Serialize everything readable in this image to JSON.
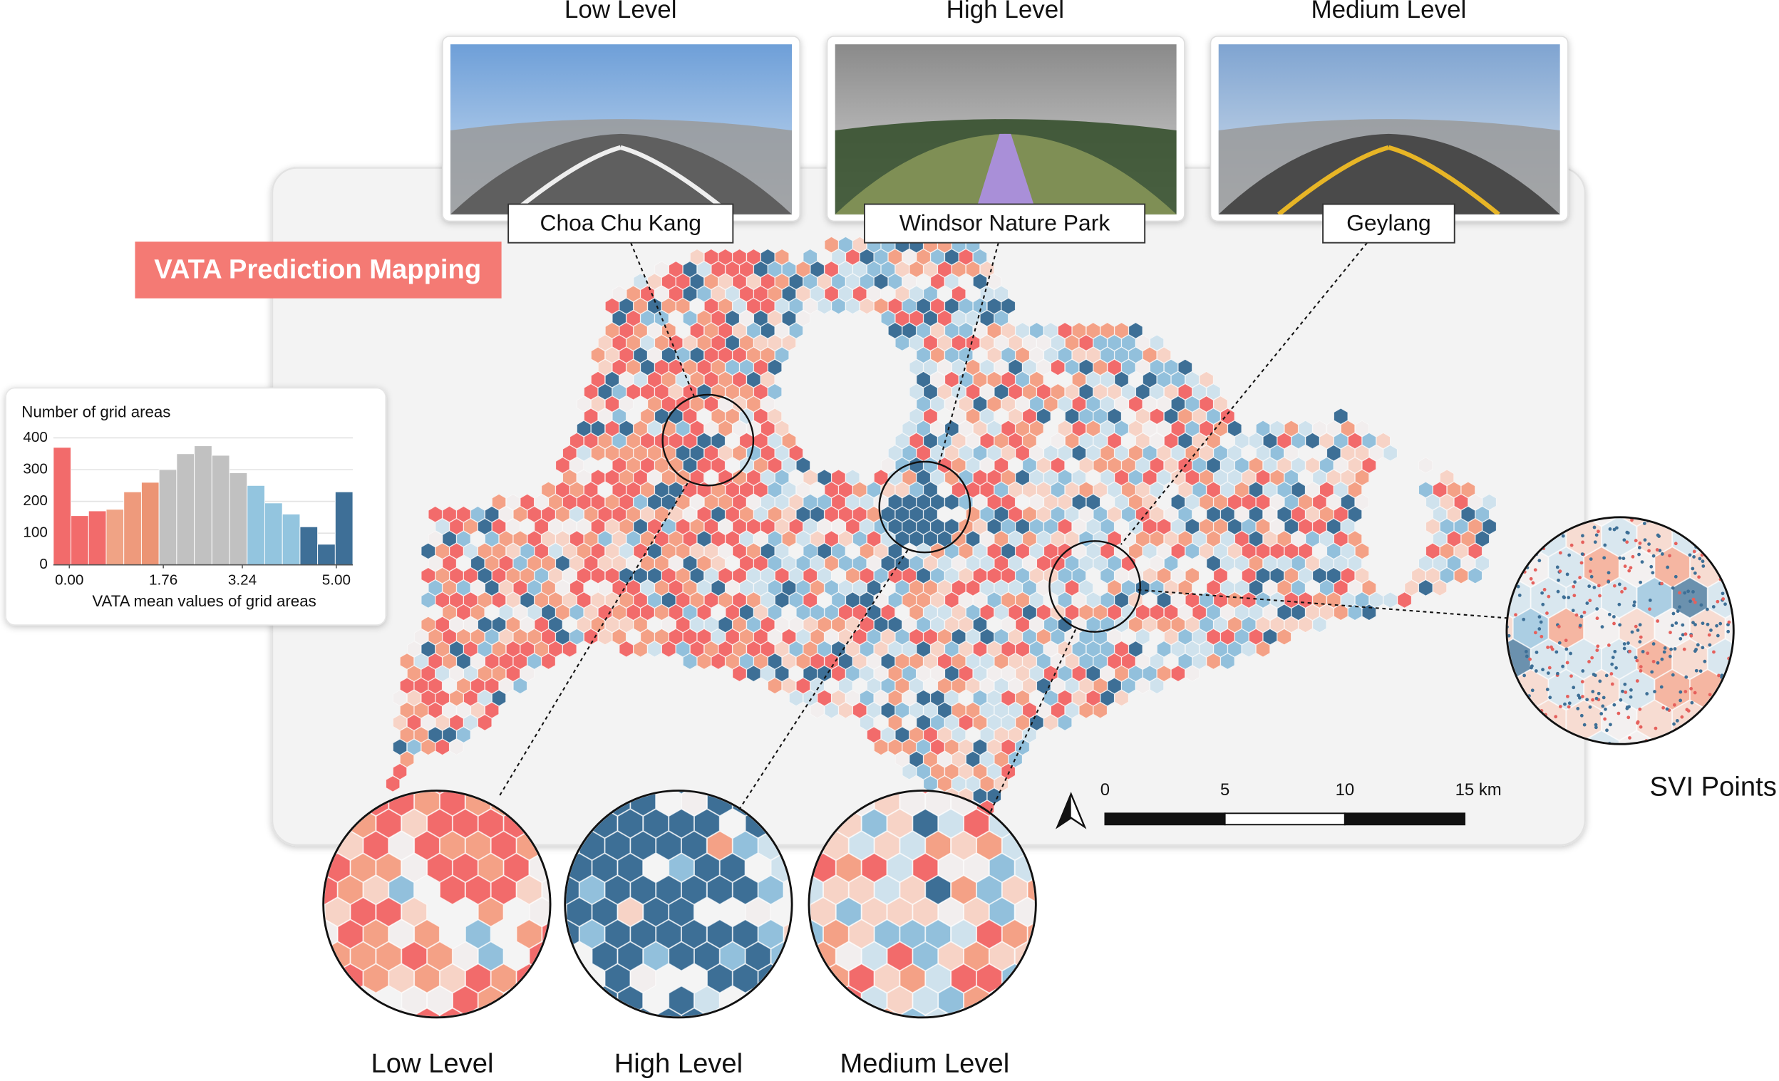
{
  "title": "VATA Prediction Mapping",
  "street_views": [
    {
      "level": "Low Level",
      "place": "Choa Chu Kang"
    },
    {
      "level": "High Level",
      "place": "Windsor Nature Park"
    },
    {
      "level": "Medium Level",
      "place": "Geylang"
    }
  ],
  "zoom_views": [
    "Low Level",
    "High Level",
    "Medium Level"
  ],
  "svi_label": "SVI Points",
  "scale_bar": {
    "xlim": [
      0,
      15
    ],
    "ticks": [
      0,
      5,
      10,
      {
        "value": 15,
        "label": "15 km"
      }
    ]
  },
  "chart_data": {
    "type": "histogram",
    "ylabel": "Number of grid areas",
    "xlabel": "VATA mean values of grid areas",
    "bins": [
      -0.3,
      0.03,
      0.36,
      0.69,
      1.02,
      1.35,
      1.68,
      2.01,
      2.34,
      2.67,
      3.0,
      3.33,
      3.66,
      3.99,
      4.32,
      4.65,
      4.98,
      5.31
    ],
    "values": [
      370,
      155,
      170,
      175,
      230,
      260,
      300,
      350,
      375,
      345,
      290,
      250,
      195,
      160,
      120,
      65,
      230
    ],
    "colors": [
      "#f26b6b",
      "#f26b6b",
      "#f26b6b",
      "#f0a385",
      "#ee9a7c",
      "#ec9474",
      "#c1c1c1",
      "#c1c1c1",
      "#c1c1c1",
      "#c1c1c1",
      "#c1c1c1",
      "#93c5df",
      "#93c5df",
      "#93c5df",
      "#3e6f97",
      "#3e6f97",
      "#3e6f97"
    ],
    "xlim": [
      -0.3,
      5.31
    ],
    "ylim": [
      0,
      400
    ],
    "xticks": [
      {
        "value": 0,
        "label": "0.00"
      },
      1.76,
      3.24,
      {
        "value": 5,
        "label": "5.00"
      }
    ],
    "yticks": [
      0,
      100,
      200,
      300,
      400
    ],
    "grid": true
  }
}
